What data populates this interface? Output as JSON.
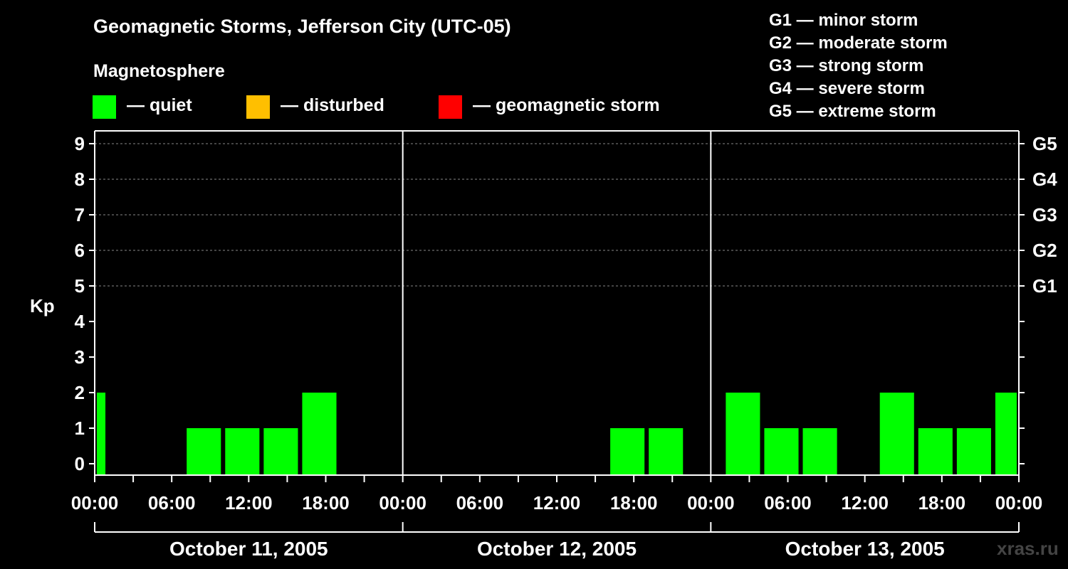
{
  "title": "Geomagnetic Storms, Jefferson City (UTC-05)",
  "subtitle": "Magnetosphere",
  "legend": [
    {
      "label": "— quiet",
      "color": "#00ff00"
    },
    {
      "label": "— disturbed",
      "color": "#ffbf00"
    },
    {
      "label": "— geomagnetic storm",
      "color": "#ff0000"
    }
  ],
  "storm_scale": [
    "G1 — minor storm",
    "G2 — moderate storm",
    "G3 — strong storm",
    "G4 — severe storm",
    "G5 — extreme storm"
  ],
  "watermark": "xras.ru",
  "chart_data": {
    "type": "bar",
    "ylabel": "Kp",
    "ylim": [
      0,
      9
    ],
    "yticks": [
      0,
      1,
      2,
      3,
      4,
      5,
      6,
      7,
      8,
      9
    ],
    "right_ticks": [
      {
        "value": 5,
        "label": "G1"
      },
      {
        "value": 6,
        "label": "G2"
      },
      {
        "value": 7,
        "label": "G3"
      },
      {
        "value": 8,
        "label": "G4"
      },
      {
        "value": 9,
        "label": "G5"
      }
    ],
    "grid": "dashed horizontal at Kp 5-9",
    "x_range_hours": [
      0,
      72
    ],
    "xtick_labels": [
      "00:00",
      "06:00",
      "12:00",
      "18:00",
      "00:00",
      "06:00",
      "12:00",
      "18:00",
      "00:00",
      "06:00",
      "12:00",
      "18:00",
      "00:00"
    ],
    "days": [
      "October 11, 2005",
      "October 12, 2005",
      "October 13, 2005"
    ],
    "series": [
      {
        "color": "#00ff00",
        "bars": [
          {
            "start_h": 0,
            "end_h": 1,
            "kp": 2
          },
          {
            "start_h": 7,
            "end_h": 10,
            "kp": 1
          },
          {
            "start_h": 10,
            "end_h": 13,
            "kp": 1
          },
          {
            "start_h": 13,
            "end_h": 16,
            "kp": 1
          },
          {
            "start_h": 16,
            "end_h": 19,
            "kp": 2
          },
          {
            "start_h": 40,
            "end_h": 43,
            "kp": 1
          },
          {
            "start_h": 43,
            "end_h": 46,
            "kp": 1
          },
          {
            "start_h": 49,
            "end_h": 52,
            "kp": 2
          },
          {
            "start_h": 52,
            "end_h": 55,
            "kp": 1
          },
          {
            "start_h": 55,
            "end_h": 58,
            "kp": 1
          },
          {
            "start_h": 61,
            "end_h": 64,
            "kp": 2
          },
          {
            "start_h": 64,
            "end_h": 67,
            "kp": 1
          },
          {
            "start_h": 67,
            "end_h": 70,
            "kp": 1
          },
          {
            "start_h": 70,
            "end_h": 72,
            "kp": 2
          }
        ]
      }
    ]
  }
}
